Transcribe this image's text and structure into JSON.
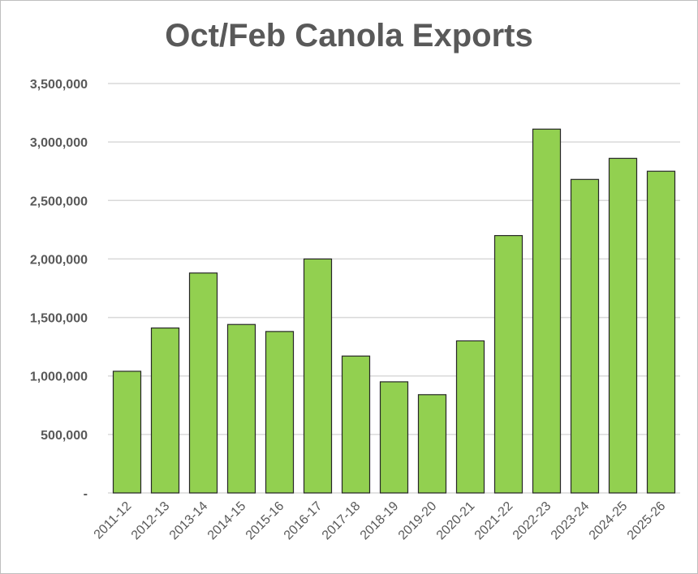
{
  "chart_data": {
    "type": "bar",
    "title": "Oct/Feb Canola Exports",
    "xlabel": "",
    "ylabel": "",
    "categories": [
      "2011-12",
      "2012-13",
      "2013-14",
      "2014-15",
      "2015-16",
      "2016-17",
      "2017-18",
      "2018-19",
      "2019-20",
      "2020-21",
      "2021-22",
      "2022-23",
      "2023-24",
      "2024-25",
      "2025-26"
    ],
    "values": [
      1040000,
      1410000,
      1880000,
      1440000,
      1380000,
      2000000,
      1170000,
      950000,
      840000,
      1300000,
      2200000,
      3110000,
      2680000,
      2860000,
      2750000
    ],
    "ylim": [
      0,
      3500000
    ],
    "y_ticks": [
      0,
      500000,
      1000000,
      1500000,
      2000000,
      2500000,
      3000000,
      3500000
    ],
    "y_tick_labels": [
      "-",
      "500,000",
      "1,000,000",
      "1,500,000",
      "2,000,000",
      "2,500,000",
      "3,000,000",
      "3,500,000"
    ],
    "grid": true,
    "legend": "none",
    "bar_color": "#92d050",
    "bar_edge_color": "#262626",
    "grid_color": "#d9d9d9",
    "text_color": "#595959"
  }
}
